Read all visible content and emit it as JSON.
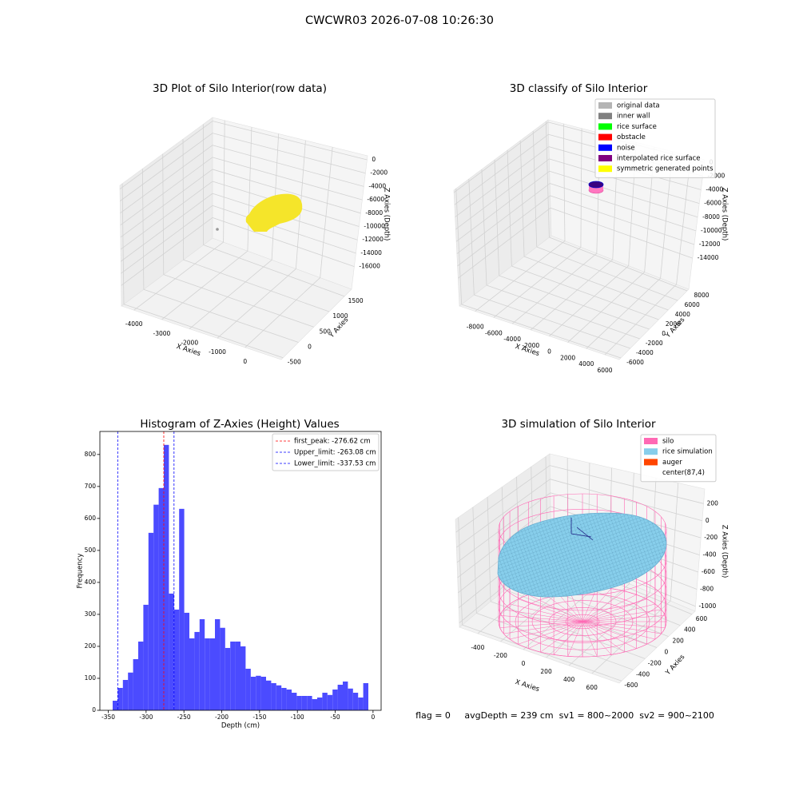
{
  "title": "CWCWR03 2026-07-08 10:26:30",
  "chart_data": [
    {
      "type": "scatter3d",
      "title": "3D Plot of Silo Interior(row data)",
      "xlabel": "X Axies",
      "ylabel": "Y Axies",
      "zlabel": "Z Axies (Depth)",
      "xlim": [
        -4450,
        1300
      ],
      "xticks": [
        -4000,
        -3000,
        -2000,
        -1000,
        0
      ],
      "ylim": [
        -560,
        1730
      ],
      "yticks": [
        -500,
        0,
        500,
        1000,
        1500
      ],
      "zlim": [
        -19400,
        600
      ],
      "zticks": [
        0,
        -2000,
        -4000,
        -6000,
        -8000,
        -10000,
        -12000,
        -14000,
        -16000
      ]
    },
    {
      "type": "scatter3d",
      "title": "3D classify of Silo Interior",
      "xlabel": "X Axies",
      "ylabel": "Y Axies",
      "zlabel": "Z Axies (Depth)",
      "xlim": [
        -9700,
        7550
      ],
      "xticks": [
        -8000,
        -6000,
        -4000,
        -2000,
        0,
        2000,
        4000,
        6000
      ],
      "ylim": [
        -6340,
        8330
      ],
      "yticks": [
        -6000,
        -4000,
        -2000,
        0,
        2000,
        4000,
        6000,
        8000
      ],
      "zlim": [
        -18540,
        380
      ],
      "zticks": [
        0,
        -2000,
        -4000,
        -6000,
        -8000,
        -10000,
        -12000,
        -14000
      ],
      "legend_entries": [
        {
          "name": "original data",
          "color": "#b4b4b4"
        },
        {
          "name": "inner wall",
          "color": "#808080"
        },
        {
          "name": "rice surface",
          "color": "#00ff00"
        },
        {
          "name": "obstacle",
          "color": "#ff0000"
        },
        {
          "name": "noise",
          "color": "#0000ff"
        },
        {
          "name": "interpolated rice surface",
          "color": "#800080"
        },
        {
          "name": "symmetric generated points",
          "color": "#ffff00"
        }
      ]
    },
    {
      "type": "histogram",
      "title": "Histogram of Z-Axies (Height) Values",
      "xlabel": "Depth (cm)",
      "ylabel": "Frequency",
      "color": "#4b4bff",
      "bins": [
        -344.2,
        -337.44,
        -330.68,
        -323.92,
        -317.16,
        -310.4,
        -303.64,
        -296.88,
        -290.12,
        -283.36,
        -276.6,
        -269.84,
        -263.08,
        -256.32,
        -249.56,
        -242.8,
        -236.04,
        -229.28,
        -222.52,
        -215.76,
        -209,
        -202.24,
        -195.48,
        -188.72,
        -181.96,
        -175.2,
        -168.44,
        -161.68,
        -154.92,
        -148.16,
        -141.4,
        -134.64,
        -127.88,
        -121.12,
        -114.36,
        -107.6,
        -100.84,
        -94.08,
        -87.32,
        -80.56,
        -73.8,
        -67.04,
        -60.28,
        -53.52,
        -46.76,
        -40,
        -33.24,
        -26.48,
        -19.72,
        -12.96,
        -6.2
      ],
      "values": [
        30,
        70,
        95,
        118,
        160,
        215,
        330,
        555,
        643,
        695,
        830,
        365,
        315,
        630,
        305,
        225,
        245,
        285,
        225,
        225,
        285,
        258,
        195,
        215,
        215,
        200,
        130,
        105,
        108,
        105,
        93,
        85,
        78,
        70,
        65,
        55,
        45,
        45,
        45,
        35,
        40,
        55,
        48,
        65,
        80,
        90,
        68,
        55,
        40,
        85
      ],
      "xlim": [
        -361.1,
        10.7
      ],
      "xticks": [
        -350,
        -300,
        -250,
        -200,
        -150,
        -100,
        -50,
        0
      ],
      "ylim": [
        0,
        872
      ],
      "yticks": [
        0,
        100,
        200,
        300,
        400,
        500,
        600,
        700,
        800
      ],
      "vlines": [
        {
          "label": "first_peak: -276.62 cm",
          "value": -276.62,
          "color": "#ff0000"
        },
        {
          "label": "Upper_limit: -263.08 cm",
          "value": -263.08,
          "color": "#0000ff"
        },
        {
          "label": "Lower_limit: -337.53 cm",
          "value": -337.53,
          "color": "#0000ff"
        }
      ],
      "legend": "upper right"
    },
    {
      "type": "surface3d",
      "title": "3D simulation of Silo Interior",
      "xlabel": "X Axies",
      "ylabel": "Y Axies",
      "zlabel": "Z Axies (Depth)",
      "xlim": [
        -560,
        840
      ],
      "xticks": [
        -400,
        -200,
        0,
        200,
        400,
        600
      ],
      "ylim": [
        -640,
        655
      ],
      "yticks": [
        -600,
        -400,
        -200,
        0,
        200,
        400,
        600
      ],
      "zlim": [
        -1057,
        371
      ],
      "zticks": [
        200,
        0,
        -200,
        -400,
        -600,
        -800,
        -1000
      ],
      "legend_entries": [
        {
          "name": "silo",
          "color": "#ff69b4"
        },
        {
          "name": "rice simulation",
          "color": "#87ceeb"
        },
        {
          "name": "auger",
          "color": "#ff4500"
        },
        {
          "name": "center(87,4)"
        }
      ]
    }
  ],
  "footer": "flag = 0     avgDepth = 239 cm  sv1 = 800~2000  sv2 = 900~2100"
}
